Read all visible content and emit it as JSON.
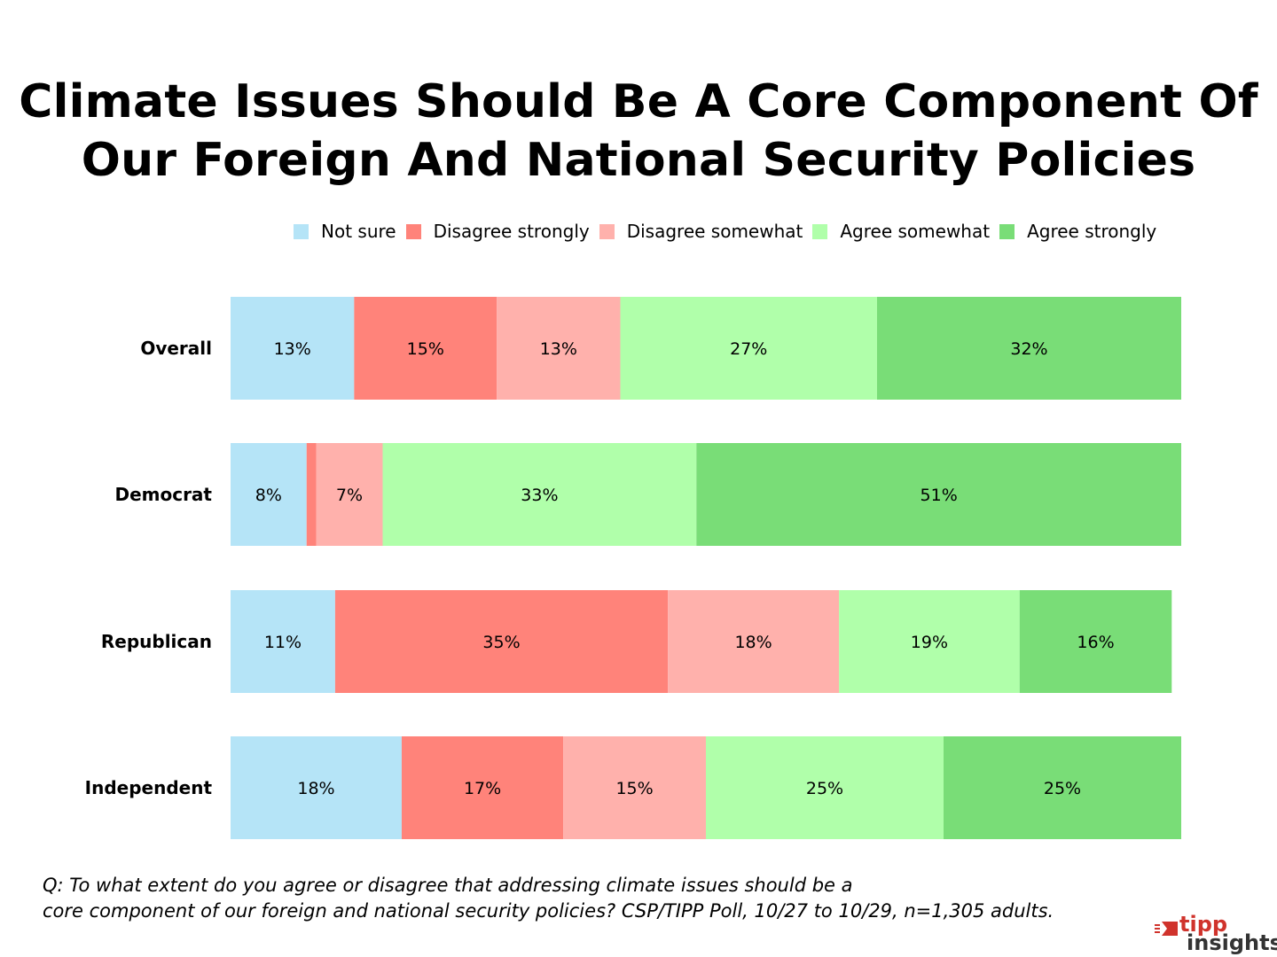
{
  "chart_data": {
    "type": "bar",
    "orientation": "horizontal",
    "stacked": true,
    "title_lines": [
      "Climate Issues Should Be A Core Component Of",
      "Our Foreign And National Security Policies"
    ],
    "categories": [
      "Overall",
      "Democrat",
      "Republican",
      "Independent"
    ],
    "series": [
      {
        "name": "Not sure",
        "color": "#b5e4f7",
        "values": [
          13,
          8,
          11,
          18
        ],
        "labels": [
          "13%",
          "8%",
          "11%",
          "18%"
        ]
      },
      {
        "name": "Disagree strongly",
        "color": "#ff837a",
        "values": [
          15,
          1,
          35,
          17
        ],
        "labels": [
          "15%",
          "",
          "35%",
          "17%"
        ]
      },
      {
        "name": "Disagree somewhat",
        "color": "#ffb1ac",
        "values": [
          13,
          7,
          18,
          15
        ],
        "labels": [
          "13%",
          "7%",
          "18%",
          "15%"
        ]
      },
      {
        "name": "Agree somewhat",
        "color": "#b0ffaa",
        "values": [
          27,
          33,
          19,
          25
        ],
        "labels": [
          "27%",
          "33%",
          "19%",
          "25%"
        ]
      },
      {
        "name": "Agree strongly",
        "color": "#79dd77",
        "values": [
          32,
          51,
          16,
          25
        ],
        "labels": [
          "32%",
          "51%",
          "16%",
          "25%"
        ]
      }
    ],
    "legend_position": "top",
    "grid": false,
    "xlim": [
      0,
      100
    ]
  },
  "footnote": {
    "line1": "Q:   To what extent do you agree or disagree that addressing climate issues should be a",
    "line2": "core component of our foreign and national security policies? CSP/TIPP Poll, 10/27 to 10/29, n=1,305 adults."
  },
  "logo": {
    "line1": "tipp",
    "line2": "insights",
    "icon": "tipp-flag-icon"
  }
}
